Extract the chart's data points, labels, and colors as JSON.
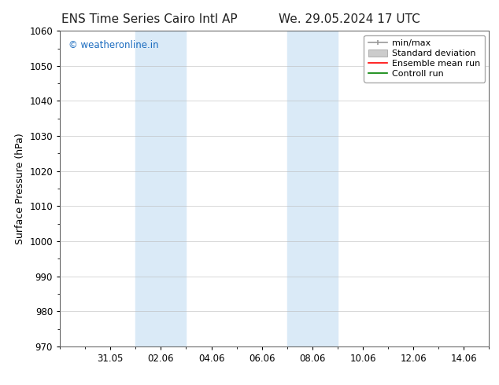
{
  "title_left": "ENS Time Series Cairo Intl AP",
  "title_right": "We. 29.05.2024 17 UTC",
  "ylabel": "Surface Pressure (hPa)",
  "ylim": [
    970,
    1060
  ],
  "yticks": [
    970,
    980,
    990,
    1000,
    1010,
    1020,
    1030,
    1040,
    1050,
    1060
  ],
  "xtick_labels": [
    "31.05",
    "02.06",
    "04.06",
    "06.06",
    "08.06",
    "10.06",
    "12.06",
    "14.06"
  ],
  "xtick_positions": [
    2,
    4,
    6,
    8,
    10,
    12,
    14,
    16
  ],
  "xlim": [
    0,
    17
  ],
  "shaded_regions": [
    {
      "x_start": 3.0,
      "x_end": 5.0
    },
    {
      "x_start": 9.0,
      "x_end": 11.0
    }
  ],
  "shaded_color": "#daeaf7",
  "background_color": "#ffffff",
  "watermark_text": "© weatheronline.in",
  "watermark_color": "#1a6bbf",
  "legend_items": [
    {
      "label": "min/max",
      "color": "#aaaaaa",
      "lw": 1.2
    },
    {
      "label": "Standard deviation",
      "color": "#cccccc",
      "lw": 6
    },
    {
      "label": "Ensemble mean run",
      "color": "#ff0000",
      "lw": 1.2
    },
    {
      "label": "Controll run",
      "color": "#008000",
      "lw": 1.2
    }
  ],
  "title_fontsize": 11,
  "axis_fontsize": 9,
  "tick_fontsize": 8.5,
  "watermark_fontsize": 8.5,
  "legend_fontsize": 8
}
